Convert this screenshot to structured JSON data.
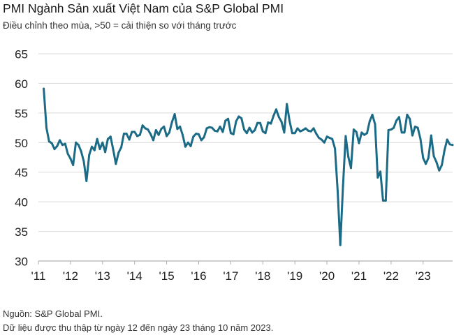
{
  "header": {
    "title": "PMI Ngành Sản xuất Việt Nam của S&P Global PMI",
    "subtitle": "Điều chỉnh theo mùa, >50 = cải thiện so với tháng trước"
  },
  "footer": {
    "source": "Nguồn: S&P Global PMI.",
    "note": "Dữ liệu được thu thập từ ngày 12 đến ngày 23 tháng 10 năm 2023."
  },
  "colors": {
    "line": "#1b6b86",
    "grid": "#d9d9d9",
    "axis": "#b0b0b0"
  },
  "chart_data": {
    "type": "line",
    "title": "PMI Ngành Sản xuất Việt Nam của S&P Global PMI",
    "subtitle": "Điều chỉnh theo mùa, >50 = cải thiện so với tháng trước",
    "xlabel": "",
    "ylabel": "",
    "ylim": [
      30,
      65
    ],
    "yticks": [
      30,
      35,
      40,
      45,
      50,
      55,
      60,
      65
    ],
    "xticks": [
      "'11",
      "'12",
      "'13",
      "'14",
      "'15",
      "'16",
      "'17",
      "'18",
      "'19",
      "'20",
      "'21",
      "'22",
      "'23"
    ],
    "grid": "horizontal",
    "x_start": "2011-03",
    "x_end": "2023-10",
    "series": [
      {
        "values": [
          59.1,
          52.5,
          50.2,
          49.9,
          48.9,
          49.4,
          50.4,
          49.6,
          49.8,
          48.1,
          47.3,
          46.2,
          50.0,
          49.6,
          48.5,
          46.8,
          43.5,
          47.9,
          49.3,
          48.7,
          50.6,
          48.9,
          50.0,
          48.4,
          50.6,
          51.0,
          48.8,
          46.4,
          48.3,
          49.2,
          51.5,
          51.5,
          50.5,
          51.8,
          51.8,
          51.1,
          51.3,
          52.9,
          52.4,
          52.2,
          51.4,
          50.4,
          52.1,
          51.3,
          52.3,
          52.7,
          51.1,
          51.7,
          53.5,
          54.8,
          52.3,
          52.7,
          51.3,
          49.3,
          50.0,
          49.4,
          51.0,
          51.5,
          51.4,
          50.4,
          50.9,
          52.4,
          52.6,
          52.5,
          52.0,
          51.9,
          52.7,
          51.8,
          53.7,
          54.0,
          51.6,
          51.4,
          53.6,
          54.4,
          54.1,
          52.2,
          51.6,
          52.5,
          51.7,
          52.1,
          53.3,
          53.3,
          51.9,
          51.6,
          53.4,
          53.2,
          54.5,
          55.6,
          54.3,
          53.5,
          51.7,
          56.5,
          53.7,
          51.6,
          51.6,
          52.4,
          51.9,
          52.1,
          52.4,
          52.0,
          51.9,
          52.4,
          51.5,
          50.8,
          50.5,
          50.0,
          51.0,
          50.8,
          50.6,
          49.0,
          41.9,
          32.7,
          42.7,
          51.1,
          47.6,
          45.7,
          52.2,
          51.8,
          49.9,
          51.7,
          51.3,
          51.6,
          53.6,
          54.7,
          53.1,
          44.1,
          45.1,
          40.2,
          40.2,
          52.1,
          52.2,
          52.5,
          53.7,
          54.3,
          51.7,
          51.7,
          54.7,
          54.0,
          51.2,
          52.7,
          52.5,
          50.6,
          47.4,
          46.4,
          47.4,
          51.2,
          47.7,
          46.7,
          45.3,
          46.2,
          48.7,
          50.5,
          49.7,
          49.6
        ]
      }
    ]
  }
}
